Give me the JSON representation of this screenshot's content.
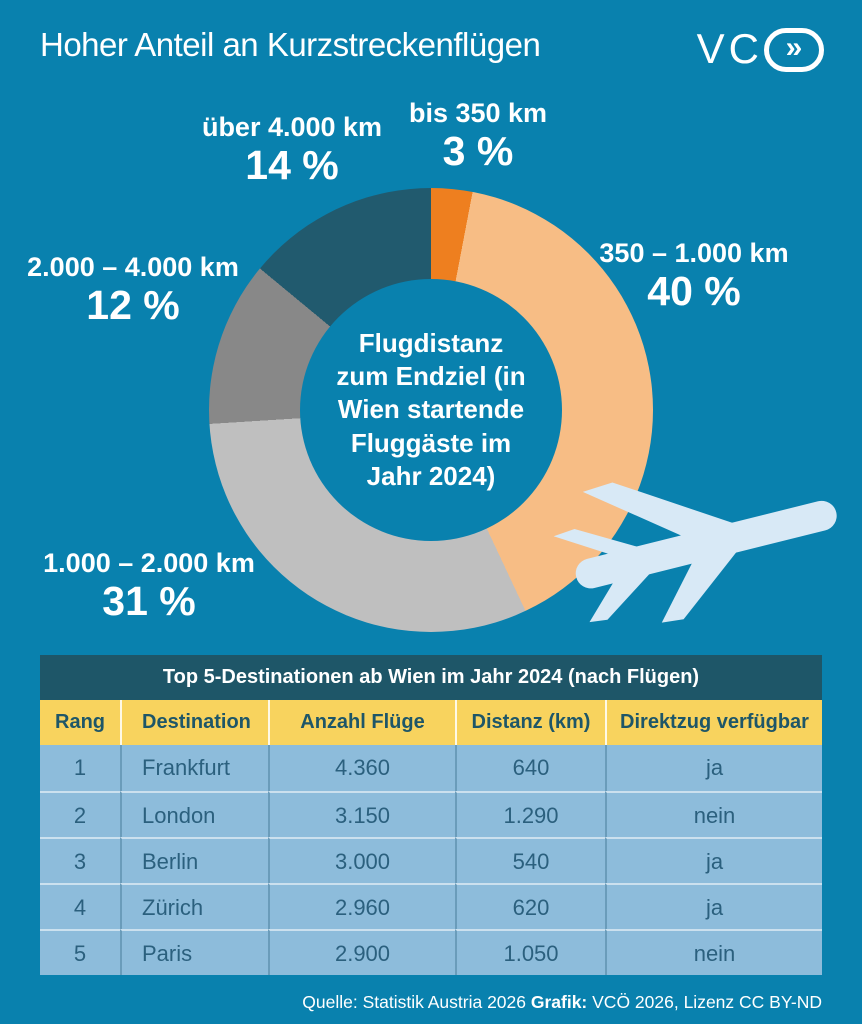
{
  "header": {
    "logo_letters": "VC",
    "logo_symbol": "»"
  },
  "colors": {
    "background": "#0981ae",
    "table_title_bg": "#1e5668",
    "table_header_bg": "#f8d35e",
    "table_row_bg": "#8dbcdb",
    "table_text": "#2b607e",
    "plane": "#d8e9f6"
  },
  "chart_data": [
    {
      "type": "pie",
      "donut": true,
      "title": "Hoher Anteil an Kurzstreckenflügen",
      "center_label": "Flugdistanz\nzum Endziel (in\nWien startende\nFluggäste im\nJahr 2024)",
      "start_angle_deg": 0,
      "direction": "clockwise",
      "value_suffix": " %",
      "segments": [
        {
          "label": "bis 350 km",
          "value": 3,
          "color": "#ee7f1f"
        },
        {
          "label": "350 – 1.000 km",
          "value": 40,
          "color": "#f7bd85"
        },
        {
          "label": "1.000 – 2.000 km",
          "value": 31,
          "color": "#bfbfbf"
        },
        {
          "label": "2.000 – 4.000 km",
          "value": 12,
          "color": "#888888"
        },
        {
          "label": "über 4.000 km",
          "value": 14,
          "color": "#215a6e"
        }
      ]
    },
    {
      "type": "table",
      "title": "Top 5-Destinationen ab Wien im Jahr 2024 (nach Flügen)",
      "columns": [
        "Rang",
        "Destination",
        "Anzahl Flüge",
        "Distanz (km)",
        "Direktzug verfügbar"
      ],
      "rows": [
        [
          "1",
          "Frankfurt",
          "4.360",
          "640",
          "ja"
        ],
        [
          "2",
          "London",
          "3.150",
          "1.290",
          "nein"
        ],
        [
          "3",
          "Berlin",
          "3.000",
          "540",
          "ja"
        ],
        [
          "4",
          "Zürich",
          "2.960",
          "620",
          "ja"
        ],
        [
          "5",
          "Paris",
          "2.900",
          "1.050",
          "nein"
        ]
      ]
    }
  ],
  "footer": {
    "source_normal": "Quelle: Statistik Austria 2026 ",
    "credit_bold": "Grafik:",
    "credit_rest": " VCÖ 2026, Lizenz CC BY-ND"
  }
}
